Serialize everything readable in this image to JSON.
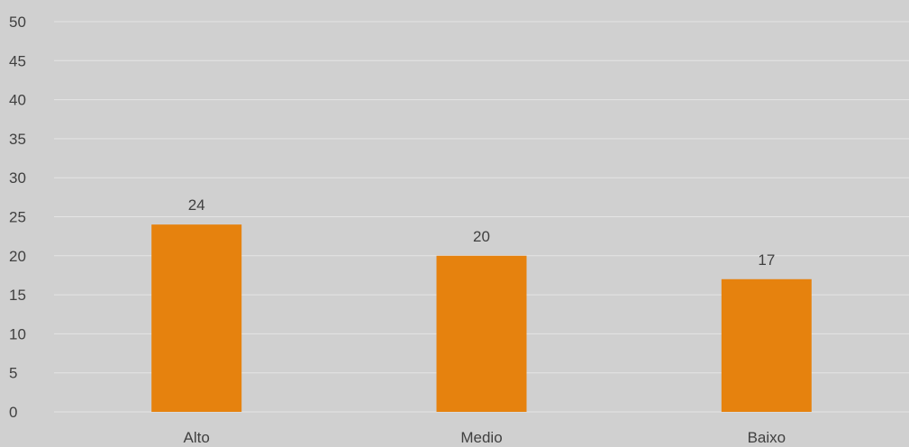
{
  "chart_data": {
    "type": "bar",
    "title": "",
    "xlabel": "",
    "ylabel": "",
    "categories": [
      "Alto",
      "Medio",
      "Baixo"
    ],
    "values": [
      24,
      20,
      17
    ],
    "data_labels": [
      "24",
      "20",
      "17"
    ],
    "ylim": [
      0,
      50
    ],
    "yticks": [
      0,
      5,
      10,
      15,
      20,
      25,
      30,
      35,
      40,
      45,
      50
    ],
    "grid": true,
    "legend": "none",
    "colors": {
      "bar": "#e6820e",
      "background": "#d0d0d0",
      "gridline": "#e4e4e4",
      "text": "#404040"
    }
  }
}
